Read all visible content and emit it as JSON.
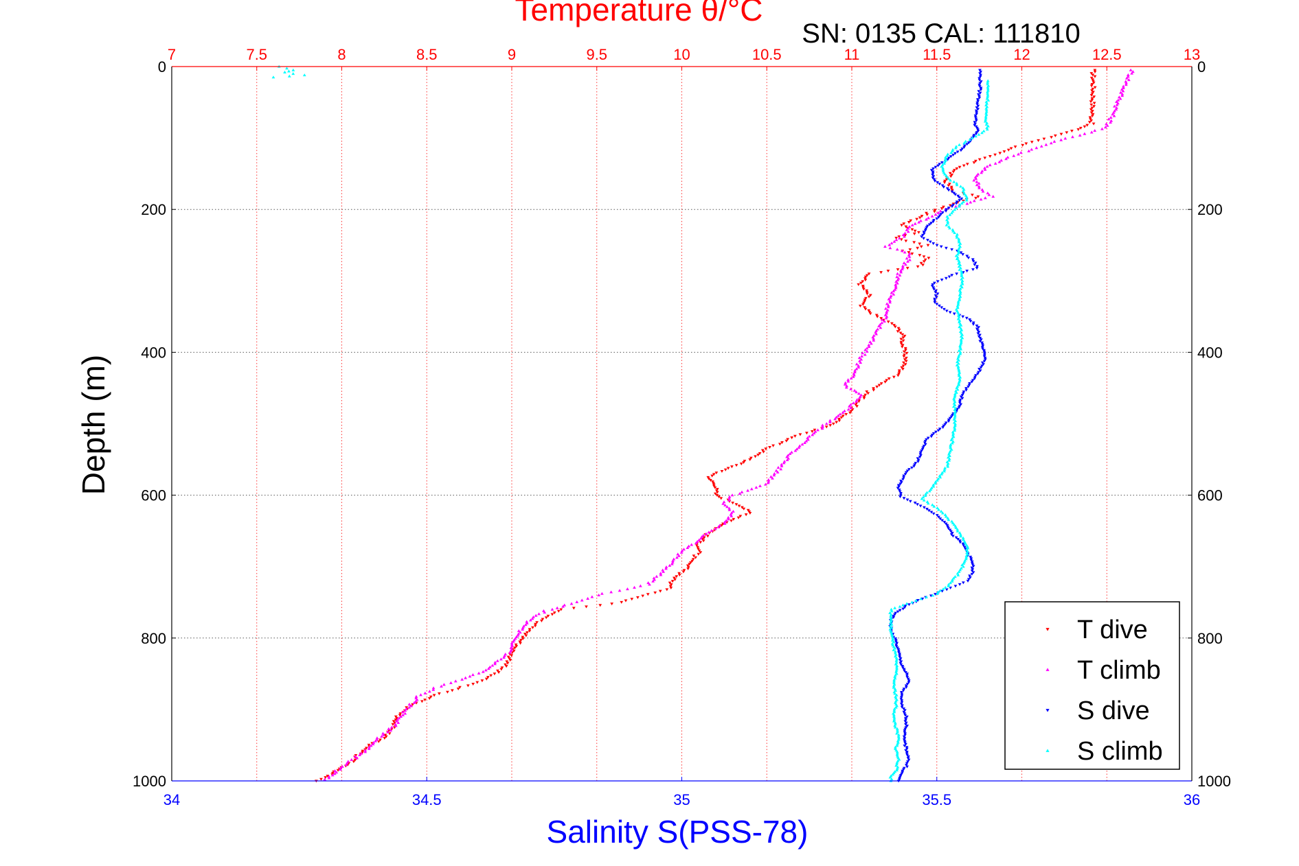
{
  "chart_data": {
    "type": "scatter",
    "title": "Temperature θ/°C",
    "subtitle": "SN: 0135  CAL: 111810",
    "xlabel": "Salinity S(PSS-78)",
    "x2label": "Temperature θ/°C",
    "ylabel": "Depth (m)",
    "xlim": [
      34,
      36
    ],
    "x2lim": [
      7,
      13
    ],
    "ylim": [
      0,
      1000
    ],
    "y_reversed": true,
    "x_ticks": [
      "34",
      "34.5",
      "35",
      "35.5",
      "36"
    ],
    "x2_ticks": [
      "7",
      "7.5",
      "8",
      "8.5",
      "9",
      "9.5",
      "10",
      "10.5",
      "11",
      "11.5",
      "12",
      "12.5",
      "13"
    ],
    "y_ticks": [
      "0",
      "200",
      "400",
      "600",
      "800",
      "1000"
    ],
    "grid": true,
    "legend_position": "bottom-right",
    "series": [
      {
        "name": "T dive",
        "axis": "temperature",
        "color": "#ff0000",
        "marker": "triangle-down",
        "points": [
          [
            12.42,
            5
          ],
          [
            12.42,
            40
          ],
          [
            12.41,
            80
          ],
          [
            12.3,
            90
          ],
          [
            12.0,
            110
          ],
          [
            11.75,
            130
          ],
          [
            11.6,
            145
          ],
          [
            11.55,
            160
          ],
          [
            11.6,
            175
          ],
          [
            11.75,
            182
          ],
          [
            11.62,
            190
          ],
          [
            11.45,
            205
          ],
          [
            11.3,
            222
          ],
          [
            11.4,
            232
          ],
          [
            11.25,
            240
          ],
          [
            11.45,
            250
          ],
          [
            11.3,
            258
          ],
          [
            11.45,
            268
          ],
          [
            11.4,
            280
          ],
          [
            11.1,
            290
          ],
          [
            11.05,
            305
          ],
          [
            11.1,
            320
          ],
          [
            11.05,
            335
          ],
          [
            11.15,
            350
          ],
          [
            11.25,
            362
          ],
          [
            11.3,
            375
          ],
          [
            11.3,
            390
          ],
          [
            11.32,
            410
          ],
          [
            11.28,
            430
          ],
          [
            11.1,
            455
          ],
          [
            11.0,
            480
          ],
          [
            10.9,
            500
          ],
          [
            10.7,
            515
          ],
          [
            10.5,
            535
          ],
          [
            10.4,
            550
          ],
          [
            10.3,
            560
          ],
          [
            10.15,
            575
          ],
          [
            10.2,
            585
          ],
          [
            10.2,
            600
          ],
          [
            10.35,
            615
          ],
          [
            10.4,
            625
          ],
          [
            10.25,
            640
          ],
          [
            10.15,
            655
          ],
          [
            10.1,
            668
          ],
          [
            10.1,
            680
          ],
          [
            10.05,
            692
          ],
          [
            10.02,
            705
          ],
          [
            9.95,
            718
          ],
          [
            9.92,
            732
          ],
          [
            9.6,
            752
          ],
          [
            9.3,
            760
          ],
          [
            9.15,
            778
          ],
          [
            9.1,
            790
          ],
          [
            9.05,
            805
          ],
          [
            9.0,
            820
          ],
          [
            8.98,
            835
          ],
          [
            8.9,
            850
          ],
          [
            8.8,
            862
          ],
          [
            8.55,
            880
          ],
          [
            8.4,
            895
          ],
          [
            8.33,
            910
          ],
          [
            8.3,
            925
          ],
          [
            8.25,
            940
          ],
          [
            8.15,
            952
          ],
          [
            8.1,
            962
          ],
          [
            8.05,
            975
          ],
          [
            7.98,
            985
          ],
          [
            7.9,
            995
          ],
          [
            7.85,
            1000
          ]
        ]
      },
      {
        "name": "T climb",
        "axis": "temperature",
        "color": "#ff00ff",
        "marker": "triangle-up",
        "points": [
          [
            12.65,
            5
          ],
          [
            12.6,
            30
          ],
          [
            12.55,
            60
          ],
          [
            12.5,
            85
          ],
          [
            12.4,
            92
          ],
          [
            12.2,
            105
          ],
          [
            11.95,
            125
          ],
          [
            11.8,
            140
          ],
          [
            11.72,
            155
          ],
          [
            11.75,
            170
          ],
          [
            11.82,
            182
          ],
          [
            11.7,
            190
          ],
          [
            11.55,
            200
          ],
          [
            11.45,
            212
          ],
          [
            11.35,
            222
          ],
          [
            11.3,
            238
          ],
          [
            11.2,
            252
          ],
          [
            11.35,
            262
          ],
          [
            11.32,
            275
          ],
          [
            11.28,
            290
          ],
          [
            11.25,
            310
          ],
          [
            11.22,
            330
          ],
          [
            11.2,
            350
          ],
          [
            11.15,
            370
          ],
          [
            11.1,
            390
          ],
          [
            11.05,
            410
          ],
          [
            11.02,
            430
          ],
          [
            10.95,
            445
          ],
          [
            11.05,
            460
          ],
          [
            10.98,
            480
          ],
          [
            10.85,
            500
          ],
          [
            10.75,
            520
          ],
          [
            10.65,
            540
          ],
          [
            10.6,
            555
          ],
          [
            10.55,
            570
          ],
          [
            10.5,
            585
          ],
          [
            10.3,
            600
          ],
          [
            10.25,
            612
          ],
          [
            10.3,
            625
          ],
          [
            10.25,
            640
          ],
          [
            10.15,
            652
          ],
          [
            10.1,
            665
          ],
          [
            10.0,
            678
          ],
          [
            9.95,
            692
          ],
          [
            9.9,
            705
          ],
          [
            9.8,
            725
          ],
          [
            9.5,
            740
          ],
          [
            9.35,
            752
          ],
          [
            9.2,
            762
          ],
          [
            9.1,
            775
          ],
          [
            9.05,
            790
          ],
          [
            9.0,
            805
          ],
          [
            9.0,
            818
          ],
          [
            8.92,
            832
          ],
          [
            8.85,
            845
          ],
          [
            8.7,
            858
          ],
          [
            8.55,
            870
          ],
          [
            8.45,
            882
          ],
          [
            8.4,
            895
          ],
          [
            8.35,
            910
          ],
          [
            8.3,
            925
          ],
          [
            8.22,
            940
          ],
          [
            8.15,
            955
          ],
          [
            8.08,
            968
          ],
          [
            8.0,
            980
          ],
          [
            7.95,
            990
          ],
          [
            7.9,
            998
          ]
        ]
      },
      {
        "name": "S dive",
        "axis": "salinity",
        "color": "#0000ff",
        "marker": "triangle-down",
        "points": [
          [
            35.585,
            5
          ],
          [
            35.585,
            30
          ],
          [
            35.58,
            55
          ],
          [
            35.575,
            80
          ],
          [
            35.58,
            90
          ],
          [
            35.57,
            100
          ],
          [
            35.55,
            115
          ],
          [
            35.52,
            130
          ],
          [
            35.49,
            145
          ],
          [
            35.495,
            160
          ],
          [
            35.53,
            175
          ],
          [
            35.55,
            185
          ],
          [
            35.52,
            200
          ],
          [
            35.495,
            215
          ],
          [
            35.48,
            225
          ],
          [
            35.47,
            238
          ],
          [
            35.5,
            250
          ],
          [
            35.54,
            258
          ],
          [
            35.57,
            270
          ],
          [
            35.58,
            282
          ],
          [
            35.53,
            292
          ],
          [
            35.49,
            305
          ],
          [
            35.5,
            318
          ],
          [
            35.495,
            330
          ],
          [
            35.52,
            342
          ],
          [
            35.56,
            352
          ],
          [
            35.58,
            365
          ],
          [
            35.585,
            380
          ],
          [
            35.59,
            395
          ],
          [
            35.595,
            410
          ],
          [
            35.58,
            430
          ],
          [
            35.56,
            448
          ],
          [
            35.55,
            460
          ],
          [
            35.545,
            475
          ],
          [
            35.53,
            490
          ],
          [
            35.51,
            505
          ],
          [
            35.48,
            522
          ],
          [
            35.47,
            540
          ],
          [
            35.46,
            555
          ],
          [
            35.44,
            568
          ],
          [
            35.43,
            580
          ],
          [
            35.425,
            590
          ],
          [
            35.43,
            602
          ],
          [
            35.47,
            615
          ],
          [
            35.5,
            628
          ],
          [
            35.52,
            640
          ],
          [
            35.53,
            655
          ],
          [
            35.55,
            668
          ],
          [
            35.56,
            680
          ],
          [
            35.57,
            695
          ],
          [
            35.57,
            708
          ],
          [
            35.56,
            720
          ],
          [
            35.52,
            732
          ],
          [
            35.47,
            745
          ],
          [
            35.44,
            755
          ],
          [
            35.42,
            765
          ],
          [
            35.41,
            775
          ],
          [
            35.41,
            790
          ],
          [
            35.42,
            805
          ],
          [
            35.425,
            820
          ],
          [
            35.43,
            835
          ],
          [
            35.44,
            850
          ],
          [
            35.445,
            862
          ],
          [
            35.43,
            878
          ],
          [
            35.43,
            892
          ],
          [
            35.44,
            908
          ],
          [
            35.44,
            925
          ],
          [
            35.435,
            940
          ],
          [
            35.44,
            955
          ],
          [
            35.445,
            968
          ],
          [
            35.44,
            980
          ],
          [
            35.43,
            990
          ],
          [
            35.425,
            1000
          ]
        ]
      },
      {
        "name": "S climb",
        "axis": "salinity",
        "color": "#00ffff",
        "marker": "triangle-up",
        "points": [
          [
            34.21,
            0
          ],
          [
            34.24,
            5
          ],
          [
            34.22,
            8
          ],
          [
            34.26,
            12
          ],
          [
            34.2,
            15
          ],
          [
            35.6,
            20
          ],
          [
            35.6,
            45
          ],
          [
            35.595,
            70
          ],
          [
            35.6,
            88
          ],
          [
            35.57,
            100
          ],
          [
            35.54,
            112
          ],
          [
            35.52,
            125
          ],
          [
            35.51,
            140
          ],
          [
            35.52,
            155
          ],
          [
            35.55,
            170
          ],
          [
            35.56,
            185
          ],
          [
            35.54,
            198
          ],
          [
            35.52,
            210
          ],
          [
            35.52,
            222
          ],
          [
            35.54,
            235
          ],
          [
            35.545,
            250
          ],
          [
            35.54,
            265
          ],
          [
            35.545,
            280
          ],
          [
            35.55,
            300
          ],
          [
            35.545,
            320
          ],
          [
            35.54,
            340
          ],
          [
            35.545,
            360
          ],
          [
            35.55,
            380
          ],
          [
            35.545,
            400
          ],
          [
            35.54,
            418
          ],
          [
            35.545,
            435
          ],
          [
            35.54,
            450
          ],
          [
            35.535,
            465
          ],
          [
            35.535,
            485
          ],
          [
            35.535,
            505
          ],
          [
            35.53,
            525
          ],
          [
            35.525,
            545
          ],
          [
            35.52,
            560
          ],
          [
            35.505,
            575
          ],
          [
            35.49,
            590
          ],
          [
            35.47,
            605
          ],
          [
            35.5,
            618
          ],
          [
            35.52,
            630
          ],
          [
            35.54,
            648
          ],
          [
            35.55,
            660
          ],
          [
            35.56,
            672
          ],
          [
            35.56,
            685
          ],
          [
            35.55,
            700
          ],
          [
            35.54,
            712
          ],
          [
            35.525,
            725
          ],
          [
            35.5,
            738
          ],
          [
            35.45,
            750
          ],
          [
            35.41,
            760
          ],
          [
            35.41,
            772
          ],
          [
            35.41,
            790
          ],
          [
            35.415,
            810
          ],
          [
            35.42,
            830
          ],
          [
            35.42,
            850
          ],
          [
            35.415,
            865
          ],
          [
            35.42,
            880
          ],
          [
            35.42,
            895
          ],
          [
            35.415,
            910
          ],
          [
            35.42,
            925
          ],
          [
            35.425,
            940
          ],
          [
            35.42,
            955
          ],
          [
            35.425,
            970
          ],
          [
            35.42,
            985
          ],
          [
            35.41,
            995
          ],
          [
            35.41,
            1000
          ]
        ]
      }
    ]
  }
}
